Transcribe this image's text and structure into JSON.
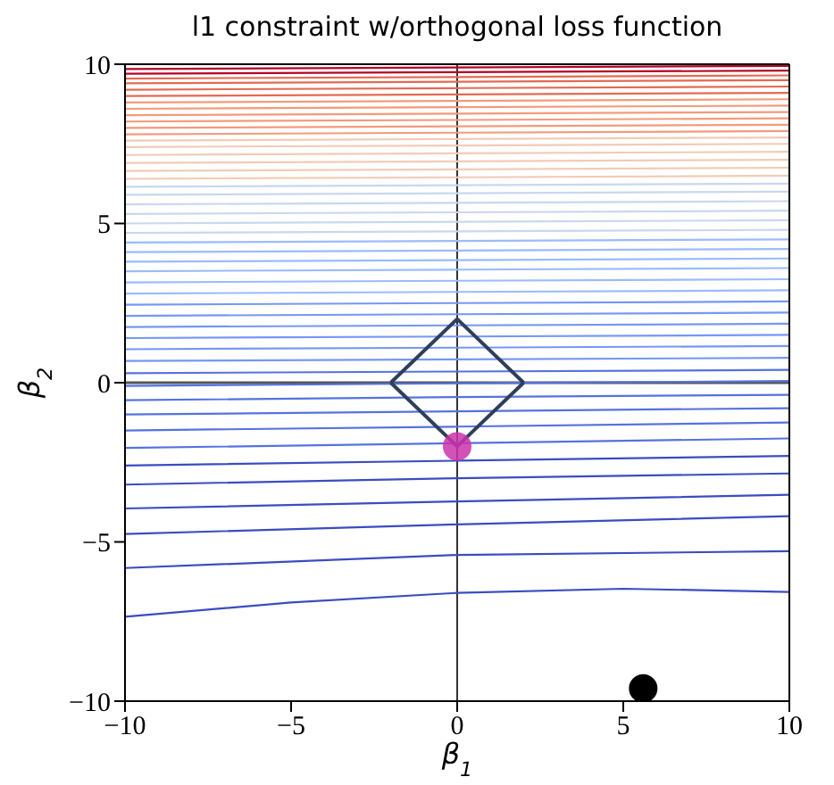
{
  "chart_data": {
    "type": "line",
    "title": "l1 constraint w/orthogonal loss function",
    "xlabel": "β$_{1}$",
    "ylabel": "β$_{2}$",
    "xlim": [
      -10,
      10
    ],
    "ylim": [
      -10,
      10
    ],
    "xticks": [
      -10,
      -5,
      0,
      5,
      10
    ],
    "yticks": [
      -10,
      -5,
      0,
      5,
      10
    ],
    "marker": "none",
    "line_style": "solid",
    "ref_lines": [
      {
        "axis": "x",
        "value": 0,
        "color": "#000000"
      },
      {
        "axis": "y",
        "value": 0,
        "color": "#555555"
      }
    ],
    "series": [
      {
        "color": "#3b4cc0",
        "x": [
          -10,
          -5,
          0,
          5,
          10
        ],
        "values": [
          -7.35,
          -6.9,
          -6.6,
          -6.47,
          -6.57
        ]
      },
      {
        "color": "#3b4cc0",
        "x": [
          -10,
          0,
          10
        ],
        "values": [
          -5.82,
          -5.41,
          -5.29
        ]
      },
      {
        "color": "#3b4cc0",
        "x": [
          -10,
          0,
          10
        ],
        "values": [
          -4.75,
          -4.45,
          -4.19
        ]
      },
      {
        "color": "#3b4cc0",
        "x": [
          -10,
          0,
          10
        ],
        "values": [
          -3.95,
          -3.73,
          -3.52
        ]
      },
      {
        "color": "#3b4cc0",
        "x": [
          -10,
          0,
          10
        ],
        "values": [
          -3.2,
          -3.0,
          -2.85
        ]
      },
      {
        "color": "#3b4cc0",
        "x": [
          -10,
          0,
          10
        ],
        "values": [
          -2.6,
          -2.45,
          -2.3
        ]
      },
      {
        "color": "#5572df",
        "x": [
          -10,
          0,
          10
        ],
        "values": [
          -2.05,
          -1.9,
          -1.75
        ]
      },
      {
        "color": "#5572df",
        "x": [
          -10,
          0,
          10
        ],
        "values": [
          -1.5,
          -1.38,
          -1.25
        ]
      },
      {
        "color": "#5572df",
        "x": [
          -10,
          0,
          10
        ],
        "values": [
          -1.0,
          -0.9,
          -0.8
        ]
      },
      {
        "color": "#5572df",
        "x": [
          -10,
          0,
          10
        ],
        "values": [
          -0.55,
          -0.45,
          -0.38
        ]
      },
      {
        "color": "#5572df",
        "x": [
          -10,
          0,
          10
        ],
        "values": [
          -0.1,
          -0.02,
          0.05
        ]
      },
      {
        "color": "#5572df",
        "x": [
          -10,
          0,
          10
        ],
        "values": [
          0.3,
          0.35,
          0.4
        ]
      },
      {
        "color": "#7597f6",
        "x": [
          -10,
          0,
          10
        ],
        "values": [
          0.68,
          0.73,
          0.78
        ]
      },
      {
        "color": "#7597f6",
        "x": [
          -10,
          0,
          10
        ],
        "values": [
          1.05,
          1.1,
          1.15
        ]
      },
      {
        "color": "#7597f6",
        "x": [
          -10,
          0,
          10
        ],
        "values": [
          1.4,
          1.45,
          1.5
        ]
      },
      {
        "color": "#7597f6",
        "x": [
          -10,
          0,
          10
        ],
        "values": [
          1.75,
          1.8,
          1.85
        ]
      },
      {
        "color": "#7597f6",
        "x": [
          -10,
          0,
          10
        ],
        "values": [
          2.1,
          2.15,
          2.2
        ]
      },
      {
        "color": "#7597f6",
        "x": [
          -10,
          0,
          10
        ],
        "values": [
          2.45,
          2.5,
          2.55
        ]
      },
      {
        "color": "#9abbff",
        "x": [
          -10,
          0,
          10
        ],
        "values": [
          2.8,
          2.85,
          2.9
        ]
      },
      {
        "color": "#9abbff",
        "x": [
          -10,
          0,
          10
        ],
        "values": [
          3.15,
          3.2,
          3.25
        ]
      },
      {
        "color": "#9abbff",
        "x": [
          -10,
          0,
          10
        ],
        "values": [
          3.5,
          3.55,
          3.6
        ]
      },
      {
        "color": "#9abbff",
        "x": [
          -10,
          0,
          10
        ],
        "values": [
          3.8,
          3.85,
          3.9
        ]
      },
      {
        "color": "#9abbff",
        "x": [
          -10,
          0,
          10
        ],
        "values": [
          4.1,
          4.15,
          4.2
        ]
      },
      {
        "color": "#9abbff",
        "x": [
          -10,
          0,
          10
        ],
        "values": [
          4.4,
          4.45,
          4.5
        ]
      },
      {
        "color": "#c9d7f0",
        "x": [
          -10,
          0,
          10
        ],
        "values": [
          4.7,
          4.75,
          4.8
        ]
      },
      {
        "color": "#c9d7f0",
        "x": [
          -10,
          0,
          10
        ],
        "values": [
          5.0,
          5.05,
          5.1
        ]
      },
      {
        "color": "#c9d7f0",
        "x": [
          -10,
          0,
          10
        ],
        "values": [
          5.3,
          5.35,
          5.4
        ]
      },
      {
        "color": "#c9d7f0",
        "x": [
          -10,
          0,
          10
        ],
        "values": [
          5.6,
          5.65,
          5.7
        ]
      },
      {
        "color": "#c9d7f0",
        "x": [
          -10,
          0,
          10
        ],
        "values": [
          5.9,
          5.95,
          6.0
        ]
      },
      {
        "color": "#c9d7f0",
        "x": [
          -10,
          0,
          10
        ],
        "values": [
          6.15,
          6.2,
          6.25
        ]
      },
      {
        "color": "#f2cbb7",
        "x": [
          -10,
          0,
          10
        ],
        "values": [
          6.4,
          6.45,
          6.5
        ]
      },
      {
        "color": "#f2cbb7",
        "x": [
          -10,
          0,
          10
        ],
        "values": [
          6.65,
          6.7,
          6.75
        ]
      },
      {
        "color": "#f2cbb7",
        "x": [
          -10,
          0,
          10
        ],
        "values": [
          6.9,
          6.95,
          7.0
        ]
      },
      {
        "color": "#f2cbb7",
        "x": [
          -10,
          0,
          10
        ],
        "values": [
          7.15,
          7.2,
          7.25
        ]
      },
      {
        "color": "#f2cbb7",
        "x": [
          -10,
          0,
          10
        ],
        "values": [
          7.4,
          7.45,
          7.5
        ]
      },
      {
        "color": "#f2cbb7",
        "x": [
          -10,
          0,
          10
        ],
        "values": [
          7.6,
          7.65,
          7.7
        ]
      },
      {
        "color": "#f49a7b",
        "x": [
          -10,
          0,
          10
        ],
        "values": [
          7.8,
          7.85,
          7.9
        ]
      },
      {
        "color": "#f49a7b",
        "x": [
          -10,
          0,
          10
        ],
        "values": [
          8.0,
          8.05,
          8.1
        ]
      },
      {
        "color": "#f49a7b",
        "x": [
          -10,
          0,
          10
        ],
        "values": [
          8.2,
          8.25,
          8.3
        ]
      },
      {
        "color": "#f49a7b",
        "x": [
          -10,
          0,
          10
        ],
        "values": [
          8.4,
          8.45,
          8.5
        ]
      },
      {
        "color": "#f49a7b",
        "x": [
          -10,
          0,
          10
        ],
        "values": [
          8.6,
          8.65,
          8.7
        ]
      },
      {
        "color": "#f49a7b",
        "x": [
          -10,
          0,
          10
        ],
        "values": [
          8.8,
          8.85,
          8.9
        ]
      },
      {
        "color": "#e36a53",
        "x": [
          -10,
          0,
          10
        ],
        "values": [
          9.0,
          9.05,
          9.1
        ]
      },
      {
        "color": "#e36a53",
        "x": [
          -10,
          0,
          10
        ],
        "values": [
          9.2,
          9.25,
          9.3
        ]
      },
      {
        "color": "#e36a53",
        "x": [
          -10,
          0,
          10
        ],
        "values": [
          9.4,
          9.45,
          9.5
        ]
      },
      {
        "color": "#e36a53",
        "x": [
          -10,
          0,
          10
        ],
        "values": [
          9.55,
          9.6,
          9.65
        ]
      },
      {
        "color": "#b40426",
        "x": [
          -10,
          0,
          10
        ],
        "values": [
          9.7,
          9.75,
          9.8
        ]
      },
      {
        "color": "#b40426",
        "x": [
          -10,
          0,
          10
        ],
        "values": [
          9.85,
          9.9,
          9.95
        ]
      },
      {
        "color": "#2e3f5c",
        "x": [
          -2,
          0,
          2
        ],
        "values": [
          0,
          2,
          0
        ]
      },
      {
        "color": "#2e3f5c",
        "x": [
          -2,
          0,
          2
        ],
        "values": [
          0,
          -2,
          0
        ]
      },
      {
        "type": "scatter",
        "marker": "circle",
        "color": "#cc33aa",
        "x": [
          0
        ],
        "values": [
          -2
        ]
      },
      {
        "type": "scatter",
        "marker": "circle",
        "color": "#000000",
        "x": [
          5.6
        ],
        "values": [
          -9.6
        ]
      }
    ]
  }
}
